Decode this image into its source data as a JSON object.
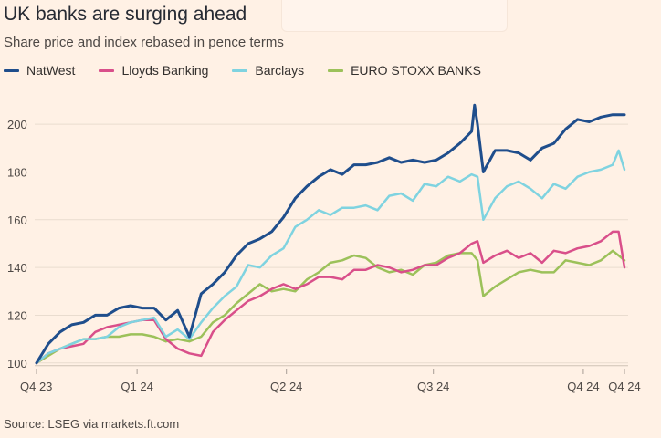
{
  "title": "UK banks are surging ahead",
  "subtitle": "Share price and index rebased in pence terms",
  "source": "Source: LSEG via markets.ft.com",
  "legend": [
    {
      "name": "NatWest",
      "color": "#1f4e8c"
    },
    {
      "name": "Lloyds Banking",
      "color": "#d94f8a"
    },
    {
      "name": "Barclays",
      "color": "#7fd3e0"
    },
    {
      "name": "EURO STOXX BANKS",
      "color": "#9cc15a"
    }
  ],
  "chart_data": {
    "type": "line",
    "title": "UK banks are surging ahead",
    "subtitle": "Share price and index rebased in pence terms",
    "xlabel": "",
    "ylabel": "",
    "ylim": [
      98,
      210
    ],
    "yticks": [
      100,
      120,
      140,
      160,
      180,
      200
    ],
    "xticks": [
      {
        "label": "Q4 23",
        "x": 0
      },
      {
        "label": "Q1 24",
        "x": 0.171
      },
      {
        "label": "Q2 24",
        "x": 0.425
      },
      {
        "label": "Q3 24",
        "x": 0.675
      },
      {
        "label": "Q4 24",
        "x": 0.93
      },
      {
        "label": "Q4 24",
        "x": 1.0
      }
    ],
    "grid": true,
    "series": [
      {
        "name": "NatWest",
        "color": "#1f4e8c",
        "x": [
          0,
          0.02,
          0.04,
          0.06,
          0.08,
          0.1,
          0.12,
          0.14,
          0.16,
          0.18,
          0.2,
          0.22,
          0.24,
          0.26,
          0.28,
          0.3,
          0.32,
          0.34,
          0.36,
          0.38,
          0.4,
          0.42,
          0.44,
          0.46,
          0.48,
          0.5,
          0.52,
          0.54,
          0.56,
          0.58,
          0.6,
          0.62,
          0.64,
          0.66,
          0.68,
          0.7,
          0.72,
          0.74,
          0.745,
          0.75,
          0.76,
          0.78,
          0.8,
          0.82,
          0.84,
          0.86,
          0.88,
          0.9,
          0.92,
          0.94,
          0.96,
          0.98,
          1.0
        ],
        "values": [
          100,
          108,
          113,
          116,
          117,
          120,
          120,
          123,
          124,
          123,
          123,
          118,
          122,
          111,
          129,
          133,
          138,
          145,
          150,
          152,
          155,
          161,
          169,
          174,
          178,
          181,
          179,
          183,
          183,
          184,
          186,
          184,
          185,
          184,
          185,
          188,
          192,
          197,
          208,
          200,
          180,
          189,
          189,
          188,
          185,
          190,
          192,
          198,
          202,
          201,
          203,
          204,
          204
        ]
      },
      {
        "name": "Lloyds Banking",
        "color": "#d94f8a",
        "x": [
          0,
          0.02,
          0.04,
          0.06,
          0.08,
          0.1,
          0.12,
          0.14,
          0.16,
          0.18,
          0.2,
          0.22,
          0.24,
          0.26,
          0.28,
          0.3,
          0.32,
          0.34,
          0.36,
          0.38,
          0.4,
          0.42,
          0.44,
          0.46,
          0.48,
          0.5,
          0.52,
          0.54,
          0.56,
          0.58,
          0.6,
          0.62,
          0.64,
          0.66,
          0.68,
          0.7,
          0.72,
          0.74,
          0.75,
          0.76,
          0.78,
          0.8,
          0.82,
          0.84,
          0.86,
          0.88,
          0.9,
          0.92,
          0.94,
          0.96,
          0.98,
          0.99,
          1.0
        ],
        "values": [
          100,
          104,
          106,
          107,
          108,
          113,
          115,
          116,
          117,
          118,
          118,
          110,
          106,
          104,
          103,
          113,
          118,
          122,
          126,
          128,
          131,
          133,
          131,
          133,
          136,
          136,
          135,
          139,
          139,
          141,
          140,
          138,
          139,
          141,
          141,
          144,
          146,
          150,
          151,
          142,
          145,
          147,
          144,
          146,
          142,
          147,
          146,
          148,
          149,
          151,
          155,
          155,
          140
        ]
      },
      {
        "name": "Barclays",
        "color": "#7fd3e0",
        "x": [
          0,
          0.02,
          0.04,
          0.06,
          0.08,
          0.1,
          0.12,
          0.14,
          0.16,
          0.18,
          0.2,
          0.22,
          0.24,
          0.26,
          0.28,
          0.3,
          0.32,
          0.34,
          0.36,
          0.38,
          0.4,
          0.42,
          0.44,
          0.46,
          0.48,
          0.5,
          0.52,
          0.54,
          0.56,
          0.58,
          0.6,
          0.62,
          0.64,
          0.66,
          0.68,
          0.7,
          0.72,
          0.74,
          0.75,
          0.76,
          0.78,
          0.8,
          0.82,
          0.84,
          0.86,
          0.88,
          0.9,
          0.92,
          0.94,
          0.96,
          0.98,
          0.99,
          1.0
        ],
        "values": [
          100,
          104,
          106,
          108,
          110,
          110,
          111,
          115,
          117,
          118,
          119,
          111,
          114,
          110,
          117,
          123,
          128,
          132,
          141,
          140,
          145,
          148,
          157,
          160,
          164,
          162,
          165,
          165,
          166,
          164,
          170,
          171,
          168,
          175,
          174,
          178,
          176,
          179,
          178,
          160,
          169,
          174,
          176,
          173,
          169,
          175,
          173,
          178,
          180,
          181,
          183,
          189,
          181
        ]
      },
      {
        "name": "EURO STOXX BANKS",
        "color": "#9cc15a",
        "x": [
          0,
          0.02,
          0.04,
          0.06,
          0.08,
          0.1,
          0.12,
          0.14,
          0.16,
          0.18,
          0.2,
          0.22,
          0.24,
          0.26,
          0.28,
          0.3,
          0.32,
          0.34,
          0.36,
          0.38,
          0.4,
          0.42,
          0.44,
          0.46,
          0.48,
          0.5,
          0.52,
          0.54,
          0.56,
          0.58,
          0.6,
          0.62,
          0.64,
          0.66,
          0.68,
          0.7,
          0.72,
          0.74,
          0.75,
          0.76,
          0.78,
          0.8,
          0.82,
          0.84,
          0.86,
          0.88,
          0.9,
          0.92,
          0.94,
          0.96,
          0.98,
          0.99,
          1.0
        ],
        "values": [
          100,
          103,
          106,
          108,
          110,
          110,
          111,
          111,
          112,
          112,
          111,
          109,
          110,
          109,
          111,
          117,
          120,
          125,
          129,
          133,
          130,
          131,
          130,
          135,
          138,
          142,
          143,
          145,
          144,
          140,
          138,
          139,
          137,
          141,
          142,
          145,
          146,
          146,
          143,
          128,
          132,
          135,
          138,
          139,
          138,
          138,
          143,
          142,
          141,
          143,
          147,
          145,
          143
        ]
      }
    ]
  }
}
